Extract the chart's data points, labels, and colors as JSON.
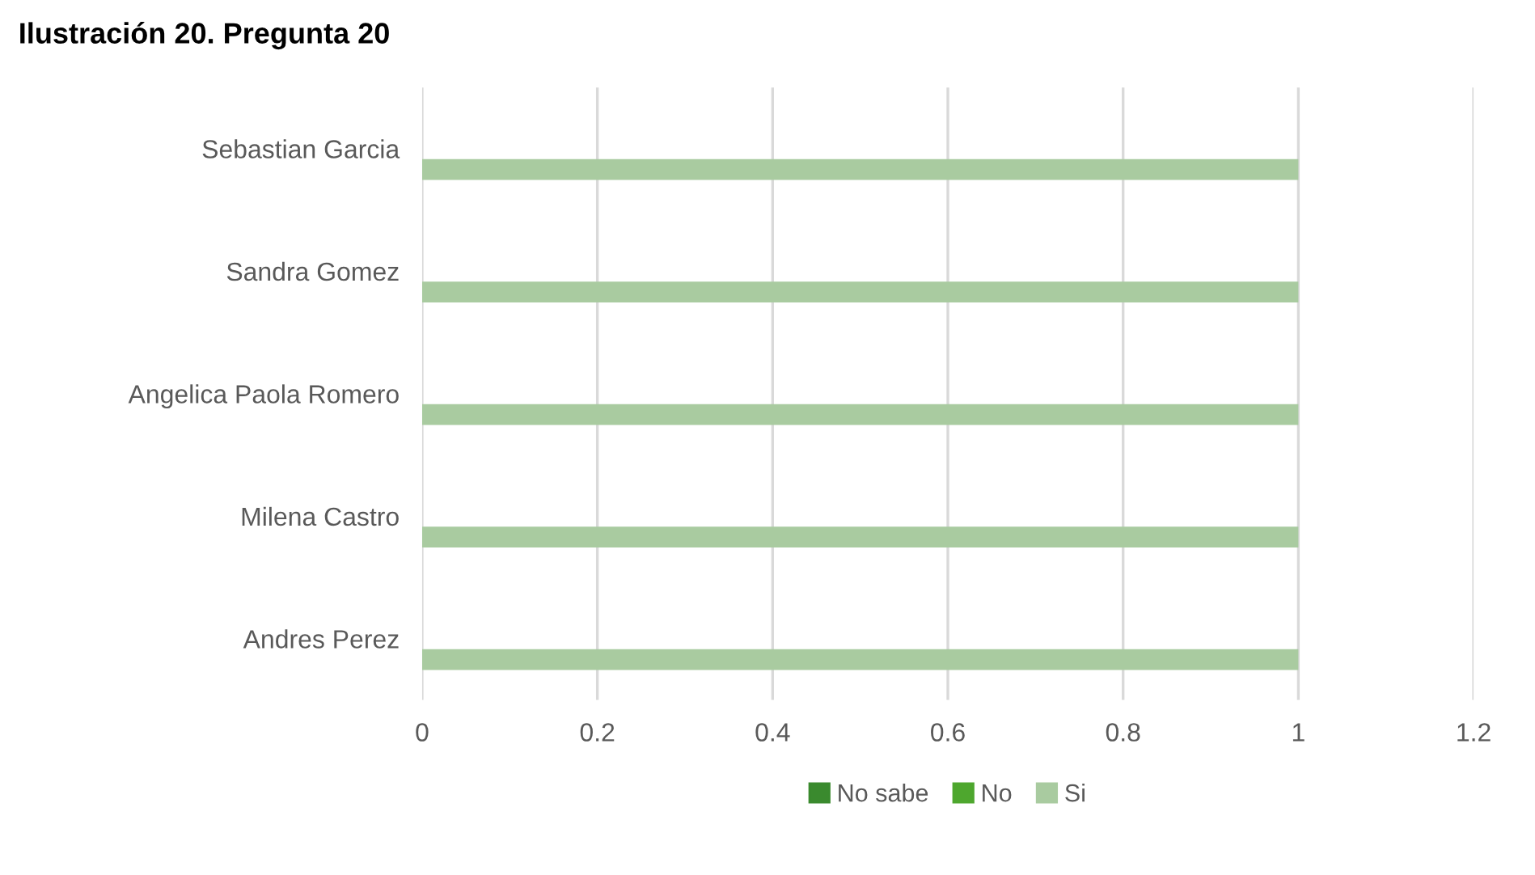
{
  "chart_data": {
    "type": "bar",
    "orientation": "horizontal",
    "title": "Ilustración 20. Pregunta 20",
    "categories": [
      "Sebastian Garcia",
      "Sandra Gomez",
      "Angelica Paola Romero",
      "Milena Castro",
      "Andres Perez"
    ],
    "series": [
      {
        "name": "No sabe",
        "color": "#3a8a2e",
        "values": [
          0,
          0,
          0,
          0,
          0
        ]
      },
      {
        "name": "No",
        "color": "#4ea72e",
        "values": [
          0,
          0,
          0,
          0,
          0
        ]
      },
      {
        "name": "Si",
        "color": "#a9cba0",
        "values": [
          1,
          1,
          1,
          1,
          1
        ]
      }
    ],
    "xlim": [
      0,
      1.2
    ],
    "xticks": [
      0,
      0.2,
      0.4,
      0.6,
      0.8,
      1,
      1.2
    ],
    "grid": "x",
    "legend": "bottom"
  }
}
